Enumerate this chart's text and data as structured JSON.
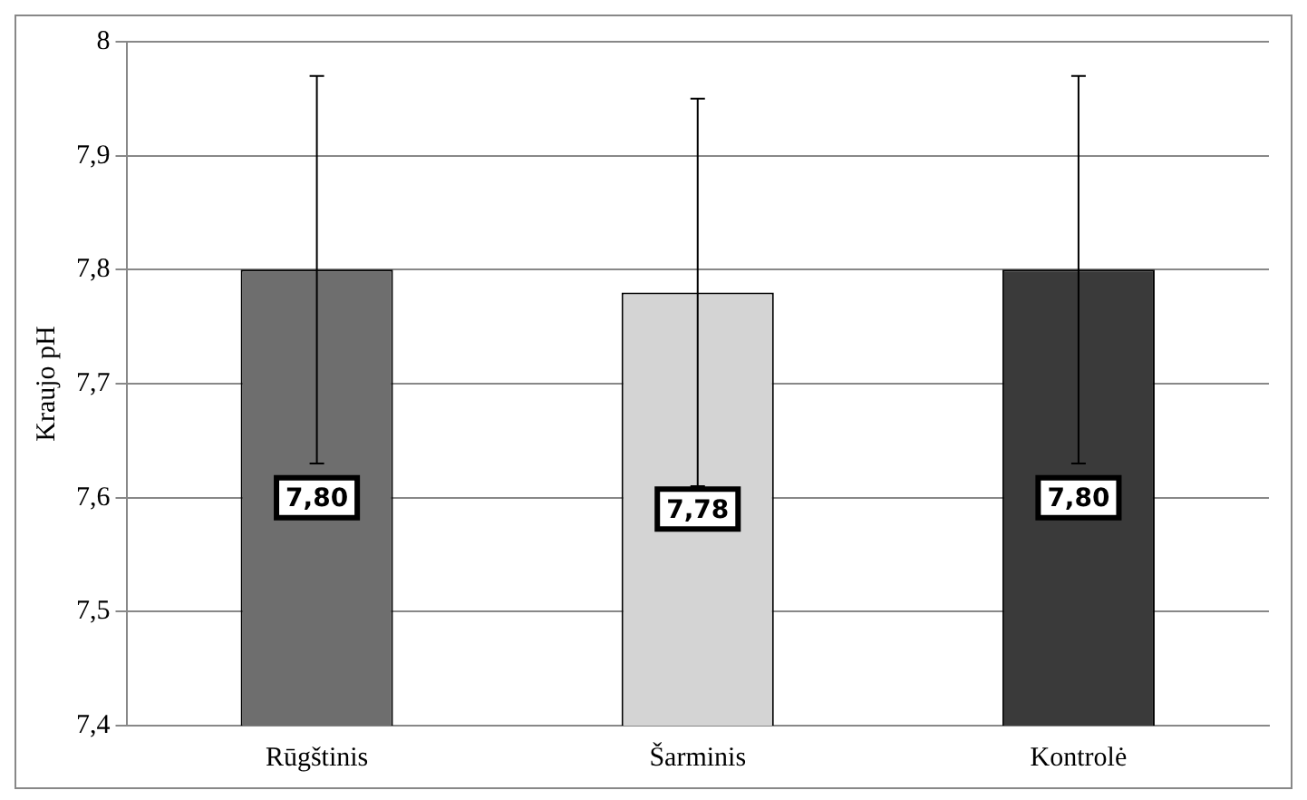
{
  "chart_data": {
    "type": "bar",
    "ylabel": "Kraujo pH",
    "categories": [
      "Rūgštinis",
      "Šarminis",
      "Kontrolė"
    ],
    "values": [
      7.8,
      7.78,
      7.8
    ],
    "colors": [
      "#6e6e6e",
      "#d4d4d4",
      "#3a3a3a"
    ],
    "errors": [
      0.17,
      0.17,
      0.17
    ],
    "value_labels": [
      "7,80",
      "7,78",
      "7,80"
    ],
    "ylim": [
      7.4,
      8
    ],
    "yticks": [
      {
        "value": 7.4,
        "label": "7,4"
      },
      {
        "value": 7.5,
        "label": "7,5"
      },
      {
        "value": 7.6,
        "label": "7,6"
      },
      {
        "value": 7.7,
        "label": "7,7"
      },
      {
        "value": 7.8,
        "label": "7,8"
      },
      {
        "value": 7.9,
        "label": "7,9"
      },
      8
    ],
    "grid": "y",
    "legend": false
  }
}
